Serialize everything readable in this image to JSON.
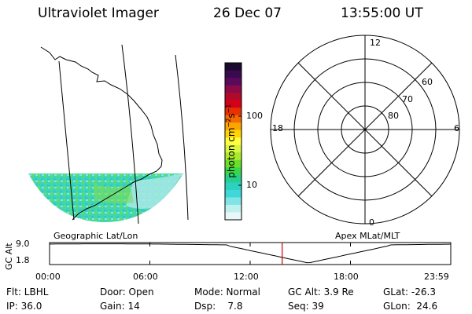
{
  "header": {
    "instrument": "Ultraviolet Imager",
    "date": "26 Dec 07",
    "time": "13:55:00 UT"
  },
  "map_panel": {
    "label": "Geographic Lat/Lon"
  },
  "colorbar": {
    "label": "photon cm",
    "label_sup1": "−2",
    "label_mid": "s",
    "label_sup2": "−1",
    "ticks": [
      "100",
      "10"
    ],
    "colors": [
      "#1a0a2e",
      "#3a0a4e",
      "#5a0a5a",
      "#8a0a4a",
      "#b00a2a",
      "#d4001a",
      "#e83000",
      "#f56a00",
      "#fca400",
      "#ffd400",
      "#ffff40",
      "#d8f540",
      "#a8ea30",
      "#6cde2a",
      "#3ad64a",
      "#26d08a",
      "#2ed0c0",
      "#3ed8d8",
      "#80e4e4",
      "#bff0f0",
      "#e8f8f8"
    ]
  },
  "polar": {
    "label": "Apex MLat/MLT",
    "mlt_labels": {
      "top": "12",
      "left": "18",
      "right": "6",
      "bottom": "0"
    },
    "lat_labels": [
      "60",
      "70",
      "80"
    ]
  },
  "altitude_plot": {
    "ylabel": "GC Alt",
    "yticks": [
      "9.0",
      "1.8"
    ],
    "xticks": [
      "00:00",
      "06:00",
      "12:00",
      "18:00",
      "23:59"
    ],
    "current_marker_time": "13:55",
    "marker_color": "#cc0000"
  },
  "status": {
    "flt": "Flt: LBHL",
    "ip": "IP: 36.0",
    "door": "Door: Open",
    "gain": "Gain: 14",
    "mode": "Mode: Normal",
    "dsp": "Dsp:    7.8",
    "gcalt": "GC Alt: 3.9 Re",
    "seq": "Seq: 39",
    "glat": "GLat: -26.3",
    "glon": "GLon:  24.6"
  }
}
